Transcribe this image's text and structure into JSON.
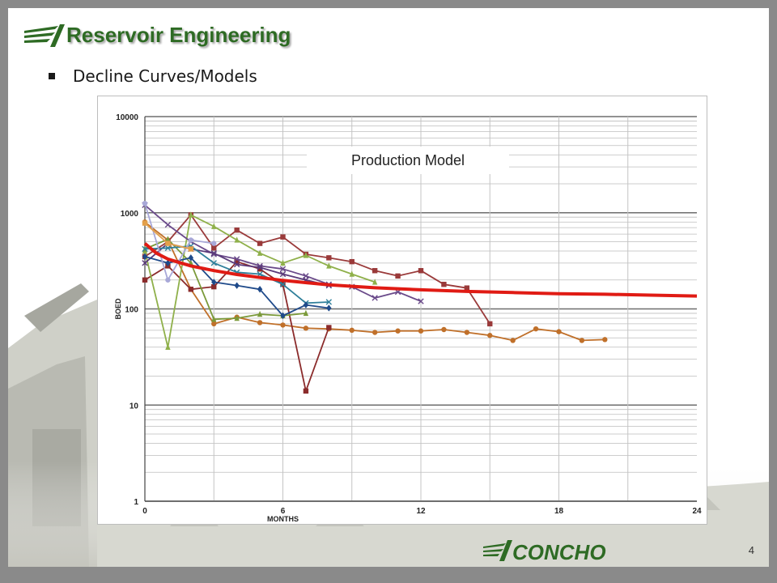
{
  "header": {
    "title": "Reservoir Engineering",
    "bullet": "Decline Curves/Models"
  },
  "footer": {
    "brand": "CONCHO",
    "page_number": "4"
  },
  "colors": {
    "title_green": "#2e6b24",
    "model_red": "#e01b14",
    "brand_green": "#2e6b24"
  },
  "chart_data": {
    "type": "line",
    "annotation": "Production Model",
    "xlabel": "MONTHS",
    "ylabel": "BOED",
    "xlim": [
      0,
      24
    ],
    "ylim": [
      1,
      10000
    ],
    "yscale": "log",
    "xticks": [
      "0",
      "6",
      "12",
      "18",
      "24"
    ],
    "yticks": [
      "1",
      "10",
      "100",
      "1000",
      "10000"
    ],
    "grid": true,
    "series": [
      {
        "color": "#e01b14",
        "marker": "none",
        "model": true,
        "x": [
          0,
          0.5,
          1,
          2,
          3,
          4,
          5,
          6,
          8,
          10,
          12,
          14,
          16,
          18,
          20,
          22,
          24
        ],
        "y": [
          480,
          380,
          330,
          280,
          250,
          228,
          212,
          198,
          178,
          166,
          158,
          152,
          148,
          144,
          142,
          139,
          136
        ]
      },
      {
        "color": "#c0702a",
        "marker": "circle",
        "x": [
          0,
          1,
          2,
          3,
          4,
          5,
          6,
          7,
          8,
          9,
          10,
          11,
          12,
          13,
          14,
          15,
          16,
          17,
          18,
          19,
          20
        ],
        "y": [
          800,
          520,
          160,
          70,
          82,
          72,
          68,
          63,
          62,
          60,
          57,
          59,
          59,
          61,
          57,
          53,
          47,
          62,
          58,
          47,
          48
        ]
      },
      {
        "color": "#9a3a3a",
        "marker": "square",
        "x": [
          0,
          1,
          2,
          3,
          4,
          5,
          6,
          7,
          8,
          9,
          10,
          11,
          12,
          13,
          14,
          15
        ],
        "y": [
          350,
          500,
          950,
          430,
          660,
          480,
          560,
          370,
          340,
          310,
          250,
          220,
          250,
          180,
          165,
          70
        ]
      },
      {
        "color": "#8b2b2b",
        "marker": "square",
        "x": [
          0,
          1,
          2,
          3,
          4,
          5,
          6,
          7,
          8
        ],
        "y": [
          200,
          280,
          160,
          170,
          310,
          260,
          180,
          14,
          64
        ]
      },
      {
        "color": "#8fb04a",
        "marker": "triangle",
        "x": [
          0,
          1,
          2,
          3,
          4,
          5,
          6,
          7,
          8,
          9,
          10
        ],
        "y": [
          400,
          40,
          950,
          720,
          520,
          380,
          300,
          360,
          280,
          230,
          190
        ]
      },
      {
        "color": "#7b9a3a",
        "marker": "triangle",
        "x": [
          0,
          1,
          2,
          3,
          4,
          5,
          6,
          7
        ],
        "y": [
          420,
          530,
          300,
          78,
          80,
          88,
          85,
          90
        ]
      },
      {
        "color": "#6a4a8a",
        "marker": "x",
        "x": [
          0,
          1,
          2,
          3,
          4,
          5,
          6,
          7,
          8,
          9,
          10,
          11,
          12
        ],
        "y": [
          1200,
          750,
          500,
          370,
          330,
          280,
          260,
          220,
          180,
          170,
          130,
          150,
          120
        ]
      },
      {
        "color": "#5a3a7a",
        "marker": "x",
        "x": [
          0,
          1,
          2,
          3,
          4,
          5,
          6,
          7,
          8
        ],
        "y": [
          300,
          480,
          420,
          380,
          290,
          270,
          230,
          200,
          175
        ]
      },
      {
        "color": "#2f7f9a",
        "marker": "x",
        "x": [
          0,
          1,
          2,
          3,
          4,
          5,
          6,
          7,
          8
        ],
        "y": [
          420,
          430,
          450,
          300,
          240,
          230,
          180,
          115,
          118
        ]
      },
      {
        "color": "#1f4a8a",
        "marker": "diamond",
        "x": [
          0,
          1,
          2,
          3,
          4,
          5,
          6,
          7,
          8
        ],
        "y": [
          350,
          300,
          340,
          190,
          175,
          160,
          85,
          110,
          102
        ]
      },
      {
        "color": "#a8a8d8",
        "marker": "circle",
        "x": [
          0,
          1,
          2,
          3
        ],
        "y": [
          1250,
          200,
          520,
          480
        ]
      },
      {
        "color": "#e3a04a",
        "marker": "square",
        "x": [
          0,
          1,
          2
        ],
        "y": [
          780,
          480,
          420
        ]
      }
    ]
  }
}
